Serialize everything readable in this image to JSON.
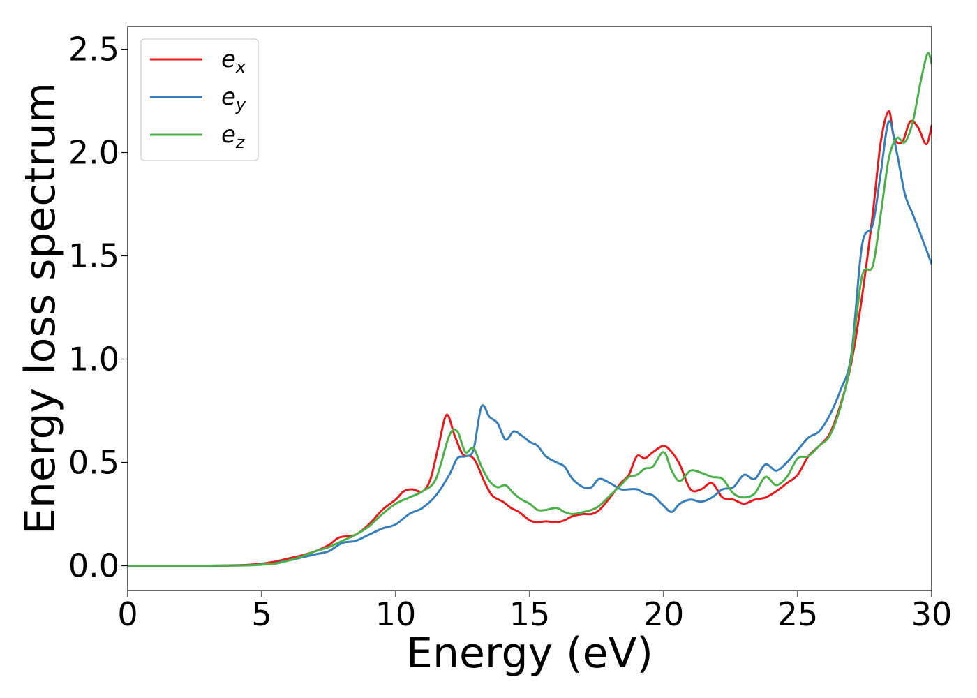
{
  "chart_data": {
    "type": "line",
    "title": "",
    "xlabel": "Energy (eV)",
    "ylabel": "Energy loss spectrum",
    "xlim": [
      0,
      30
    ],
    "ylim": [
      -0.12,
      2.61
    ],
    "xticks": [
      0,
      5,
      10,
      15,
      20,
      25,
      30
    ],
    "xtick_labels": [
      "0",
      "5",
      "10",
      "15",
      "20",
      "25",
      "30"
    ],
    "yticks": [
      0.0,
      0.5,
      1.0,
      1.5,
      2.0,
      2.5
    ],
    "ytick_labels": [
      "0.0",
      "0.5",
      "1.0",
      "1.5",
      "2.0",
      "2.5"
    ],
    "grid": false,
    "legend_position": "top-left",
    "series": [
      {
        "name": "e",
        "subscript": "x",
        "color": "#e41a1c",
        "x": [
          0,
          1,
          2,
          3,
          4,
          4.5,
          5,
          5.5,
          6,
          6.5,
          7,
          7.5,
          7.8,
          8,
          8.5,
          9,
          9.5,
          10,
          10.3,
          10.6,
          11,
          11.3,
          11.6,
          11.9,
          12.2,
          12.5,
          12.8,
          13,
          13.3,
          13.6,
          14,
          14.3,
          14.6,
          15,
          15.3,
          15.6,
          16,
          16.3,
          16.6,
          17,
          17.3,
          17.6,
          18,
          18.4,
          18.7,
          19,
          19.3,
          19.6,
          20,
          20.3,
          20.6,
          21,
          21.4,
          21.8,
          22.2,
          22.6,
          23,
          23.4,
          23.8,
          24.2,
          24.6,
          25,
          25.4,
          25.8,
          26.2,
          26.6,
          27,
          27.4,
          27.8,
          28.1,
          28.4,
          28.6,
          28.9,
          29.2,
          29.5,
          29.8,
          30
        ],
        "y": [
          0.0,
          0.0,
          0.0,
          0.0,
          0.002,
          0.004,
          0.01,
          0.02,
          0.035,
          0.05,
          0.07,
          0.1,
          0.13,
          0.14,
          0.15,
          0.2,
          0.27,
          0.32,
          0.36,
          0.37,
          0.36,
          0.42,
          0.58,
          0.73,
          0.63,
          0.54,
          0.53,
          0.5,
          0.41,
          0.34,
          0.31,
          0.28,
          0.26,
          0.22,
          0.21,
          0.215,
          0.21,
          0.22,
          0.24,
          0.25,
          0.25,
          0.27,
          0.33,
          0.4,
          0.44,
          0.53,
          0.52,
          0.55,
          0.58,
          0.55,
          0.49,
          0.37,
          0.37,
          0.4,
          0.33,
          0.32,
          0.3,
          0.32,
          0.33,
          0.36,
          0.4,
          0.44,
          0.53,
          0.58,
          0.64,
          0.78,
          0.98,
          1.3,
          1.7,
          2.05,
          2.2,
          2.07,
          2.05,
          2.15,
          2.12,
          2.04,
          2.13
        ]
      },
      {
        "name": "e",
        "subscript": "y",
        "color": "#377eb8",
        "x": [
          0,
          1,
          2,
          3,
          4,
          4.5,
          5,
          5.5,
          6,
          6.5,
          7,
          7.5,
          8,
          8.5,
          9,
          9.5,
          10,
          10.5,
          11,
          11.5,
          12,
          12.3,
          12.6,
          12.9,
          13.2,
          13.5,
          13.8,
          14.1,
          14.4,
          14.7,
          15,
          15.3,
          15.6,
          16,
          16.3,
          16.6,
          17,
          17.3,
          17.6,
          18,
          18.4,
          18.7,
          19,
          19.3,
          19.6,
          20,
          20.3,
          20.6,
          21,
          21.4,
          21.8,
          22.2,
          22.6,
          23,
          23.4,
          23.8,
          24.2,
          24.6,
          25,
          25.4,
          25.8,
          26.2,
          26.6,
          27,
          27.4,
          27.8,
          28.1,
          28.4,
          28.7,
          29,
          29.3,
          29.6,
          30
        ],
        "y": [
          0.0,
          0.0,
          0.0,
          0.0,
          0.001,
          0.002,
          0.006,
          0.012,
          0.025,
          0.04,
          0.055,
          0.07,
          0.11,
          0.12,
          0.15,
          0.18,
          0.2,
          0.25,
          0.28,
          0.34,
          0.44,
          0.52,
          0.53,
          0.56,
          0.77,
          0.72,
          0.69,
          0.61,
          0.65,
          0.63,
          0.6,
          0.58,
          0.53,
          0.5,
          0.48,
          0.42,
          0.38,
          0.38,
          0.42,
          0.4,
          0.37,
          0.37,
          0.37,
          0.35,
          0.34,
          0.29,
          0.26,
          0.3,
          0.32,
          0.31,
          0.33,
          0.37,
          0.38,
          0.44,
          0.42,
          0.49,
          0.46,
          0.5,
          0.56,
          0.62,
          0.65,
          0.73,
          0.85,
          1.02,
          1.55,
          1.65,
          1.9,
          2.15,
          2.0,
          1.8,
          1.7,
          1.6,
          1.46
        ]
      },
      {
        "name": "e",
        "subscript": "z",
        "color": "#4daf4a",
        "x": [
          0,
          1,
          2,
          3,
          4,
          4.5,
          5,
          5.5,
          6,
          6.5,
          7,
          7.5,
          8,
          8.5,
          9,
          9.5,
          10,
          10.5,
          11,
          11.5,
          12,
          12.3,
          12.6,
          12.9,
          13.2,
          13.5,
          13.8,
          14.1,
          14.4,
          14.7,
          15,
          15.3,
          15.6,
          16,
          16.3,
          16.6,
          17,
          17.3,
          17.6,
          18,
          18.4,
          18.7,
          19,
          19.3,
          19.6,
          20,
          20.3,
          20.6,
          21,
          21.4,
          21.8,
          22.2,
          22.6,
          23,
          23.4,
          23.8,
          24.2,
          24.6,
          25,
          25.4,
          25.8,
          26.2,
          26.6,
          27,
          27.4,
          27.8,
          28.1,
          28.4,
          28.7,
          29,
          29.3,
          29.6,
          29.85,
          30
        ],
        "y": [
          0.0,
          0.0,
          0.0,
          0.0,
          0.001,
          0.002,
          0.005,
          0.01,
          0.025,
          0.045,
          0.07,
          0.09,
          0.12,
          0.15,
          0.19,
          0.25,
          0.3,
          0.33,
          0.36,
          0.42,
          0.63,
          0.65,
          0.55,
          0.57,
          0.48,
          0.41,
          0.38,
          0.39,
          0.35,
          0.32,
          0.3,
          0.27,
          0.27,
          0.28,
          0.26,
          0.25,
          0.26,
          0.27,
          0.29,
          0.34,
          0.39,
          0.43,
          0.44,
          0.47,
          0.48,
          0.55,
          0.46,
          0.41,
          0.46,
          0.45,
          0.43,
          0.42,
          0.35,
          0.33,
          0.35,
          0.43,
          0.39,
          0.43,
          0.52,
          0.53,
          0.58,
          0.63,
          0.77,
          1.0,
          1.4,
          1.45,
          1.7,
          1.97,
          2.07,
          2.05,
          2.15,
          2.35,
          2.48,
          2.43
        ]
      }
    ]
  }
}
